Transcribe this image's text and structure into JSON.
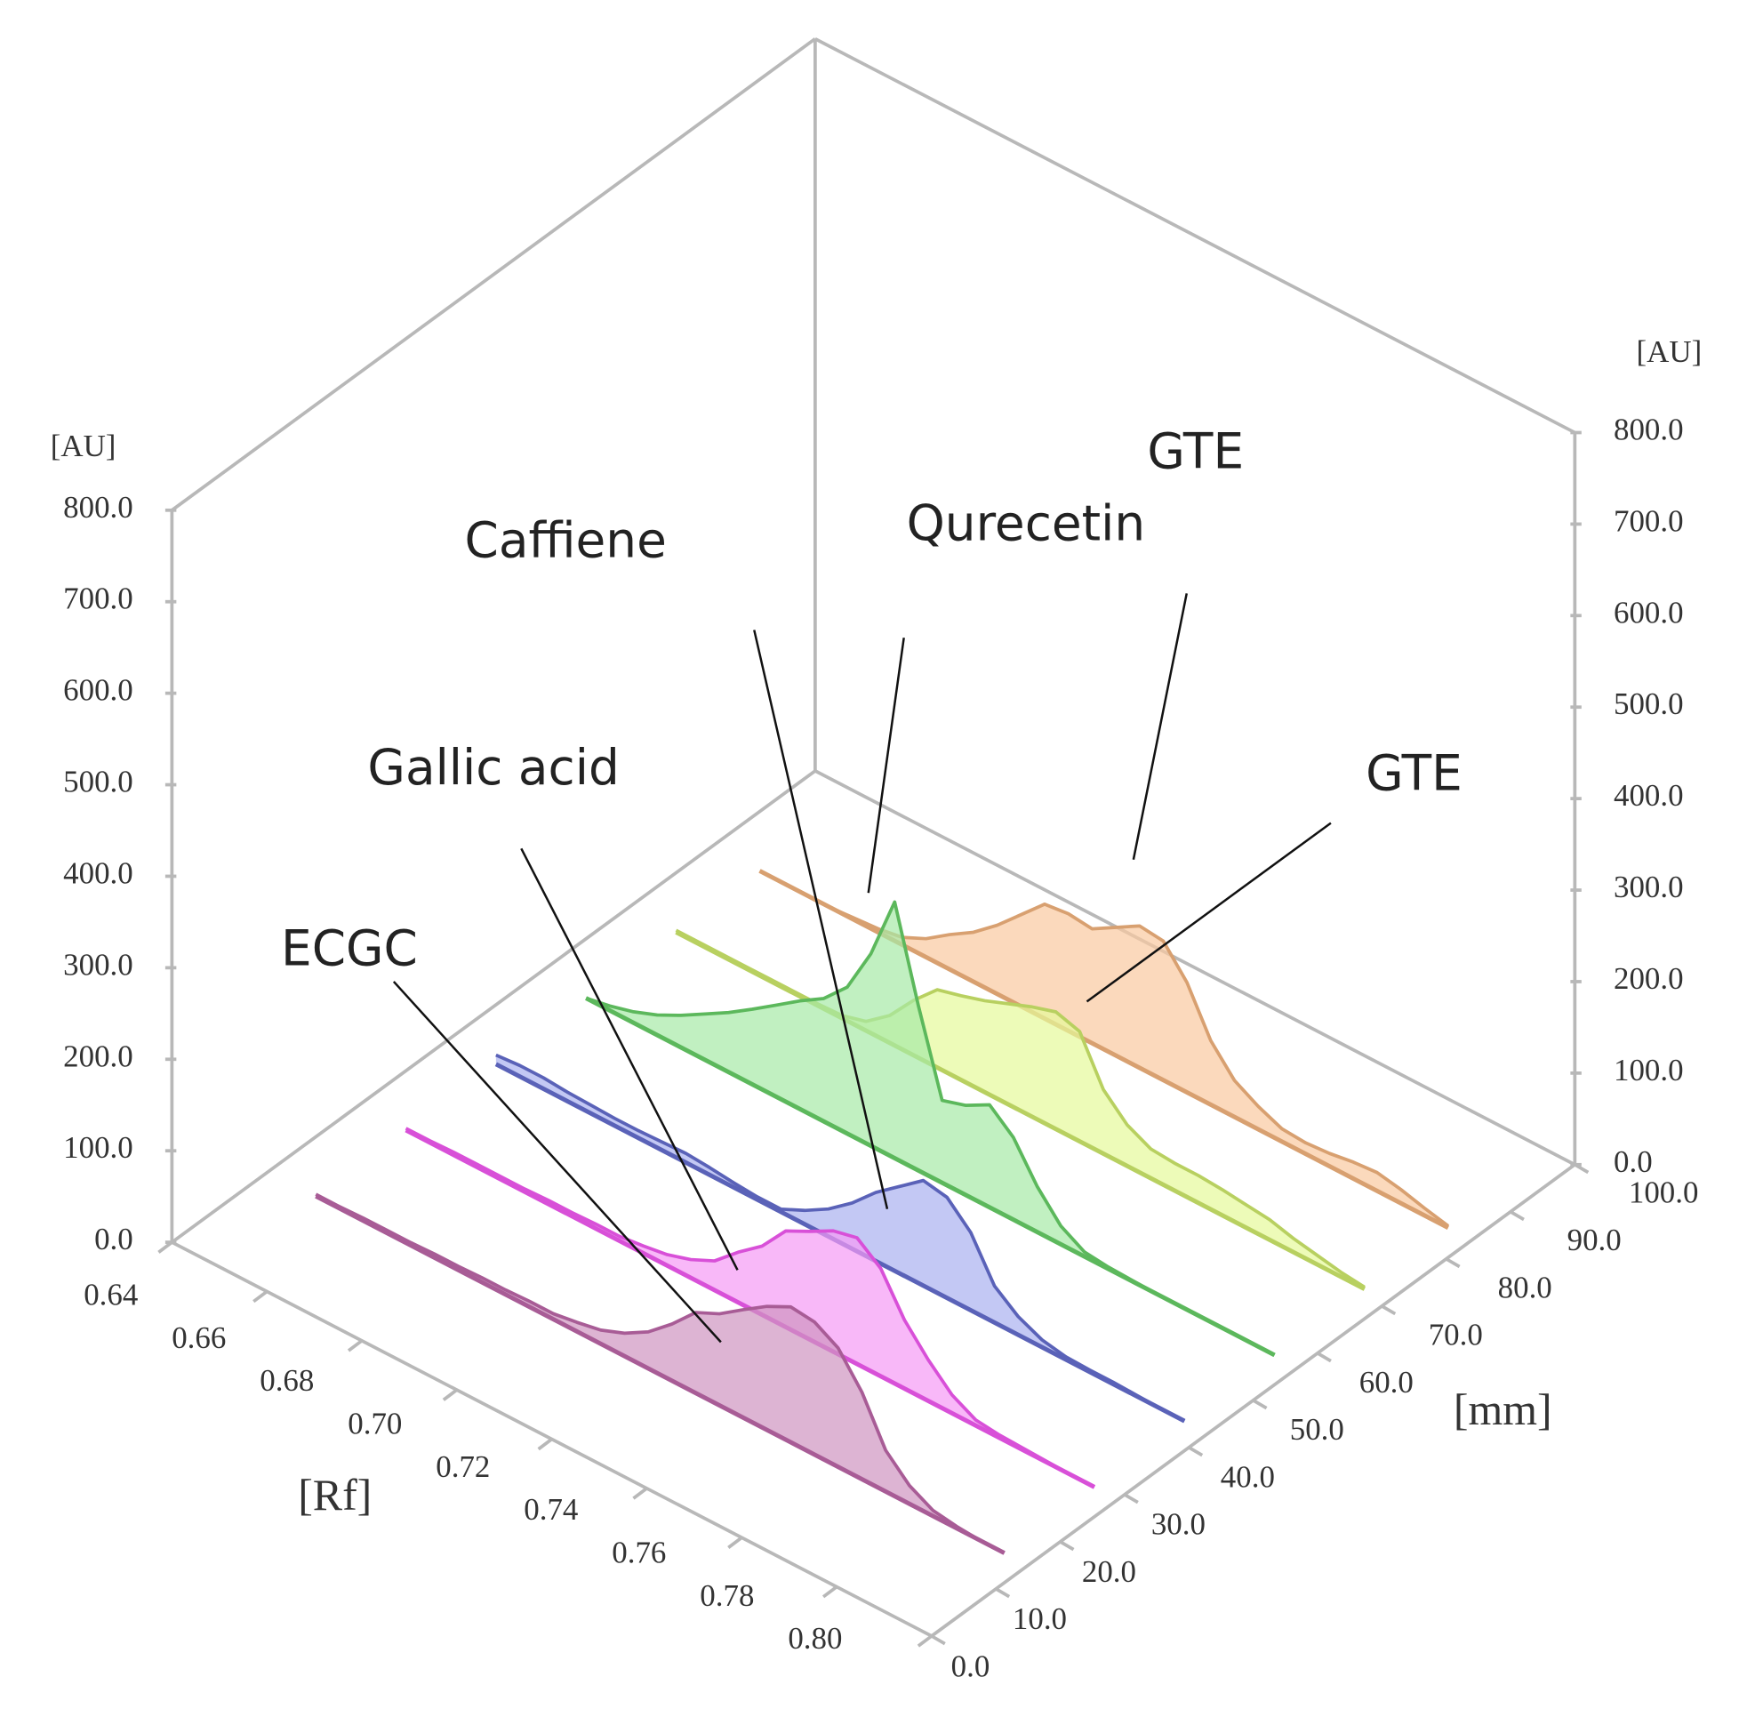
{
  "chart_data": {
    "type": "line3d",
    "xlabel": "[Rf]",
    "zlabel": "[mm]",
    "ylabel": "[AU]",
    "y2label": "[AU]",
    "xlim": [
      0.64,
      0.8
    ],
    "xticks": [
      0.64,
      0.66,
      0.68,
      {
        "value": 0.7,
        "label": "0.70"
      },
      0.72,
      0.74,
      0.76,
      0.78,
      {
        "value": 0.8,
        "label": "0.80"
      }
    ],
    "zlim": [
      0,
      100
    ],
    "zticks": [
      {
        "value": 0,
        "label": "0.0"
      },
      {
        "value": 10,
        "label": "10.0"
      },
      {
        "value": 20,
        "label": "20.0"
      },
      {
        "value": 30,
        "label": "30.0"
      },
      {
        "value": 40,
        "label": "40.0"
      },
      {
        "value": 50,
        "label": "50.0"
      },
      {
        "value": 60,
        "label": "60.0"
      },
      {
        "value": 70,
        "label": "70.0"
      },
      {
        "value": 80,
        "label": "80.0"
      },
      {
        "value": 90,
        "label": "90.0"
      },
      {
        "value": 100,
        "label": "100.0"
      }
    ],
    "ylim": [
      0,
      800
    ],
    "yticks": [
      {
        "value": 0,
        "label": "0.0"
      },
      {
        "value": 100,
        "label": "100.0"
      },
      {
        "value": 200,
        "label": "200.0"
      },
      {
        "value": 300,
        "label": "300.0"
      },
      {
        "value": 400,
        "label": "400.0"
      },
      {
        "value": 500,
        "label": "500.0"
      },
      {
        "value": 600,
        "label": "600.0"
      },
      {
        "value": 700,
        "label": "700.0"
      },
      {
        "value": 800,
        "label": "800.0"
      }
    ],
    "y2lim": [
      0,
      800
    ],
    "y2ticks": [
      {
        "value": 0,
        "label": "0.0"
      },
      {
        "value": 100,
        "label": "100.0"
      },
      {
        "value": 200,
        "label": "200.0"
      },
      {
        "value": 300,
        "label": "300.0"
      },
      {
        "value": 400,
        "label": "400.0"
      },
      {
        "value": 500,
        "label": "500.0"
      },
      {
        "value": 600,
        "label": "600.0"
      },
      {
        "value": 700,
        "label": "700.0"
      },
      {
        "value": 800,
        "label": "800.0"
      }
    ],
    "x": [
      0.65,
      0.655,
      0.66,
      0.665,
      0.67,
      0.675,
      0.68,
      0.685,
      0.69,
      0.695,
      0.7,
      0.705,
      0.71,
      0.715,
      0.72,
      0.725,
      0.73,
      0.735,
      0.74,
      0.745,
      0.75,
      0.755,
      0.76,
      0.765,
      0.77,
      0.775,
      0.78,
      0.785,
      0.79,
      0.795
    ],
    "series": [
      {
        "name": "ECGC",
        "color": "#a85c96",
        "fill": "#cf94c0",
        "mm": 15,
        "values": [
          2,
          2,
          3,
          3,
          3,
          4,
          4,
          5,
          5,
          6,
          6,
          10,
          15,
          25,
          40,
          62,
          88,
          100,
          118,
          135,
          148,
          145,
          130,
          95,
          45,
          20,
          6,
          2,
          0,
          0
        ]
      },
      {
        "name": "Gallic acid",
        "color": "#d850d8",
        "fill": "#f59af5",
        "mm": 29,
        "values": [
          2,
          2,
          3,
          3,
          3,
          3,
          4,
          4,
          5,
          5,
          8,
          12,
          20,
          32,
          55,
          75,
          105,
          118,
          132,
          138,
          118,
          75,
          45,
          20,
          6,
          3,
          2,
          1,
          0,
          0
        ]
      },
      {
        "name": "Caffiene",
        "color": "#5a62b8",
        "fill": "#a9b0f0",
        "mm": 43,
        "values": [
          10,
          12,
          12,
          10,
          9,
          8,
          8,
          9,
          10,
          8,
          5,
          3,
          3,
          15,
          30,
          50,
          75,
          95,
          115,
          110,
          85,
          40,
          20,
          8,
          3,
          2,
          2,
          1,
          0,
          0
        ]
      },
      {
        "name": "Qurecetin",
        "color": "#5cb85c",
        "fill": "#a6eaa6",
        "mm": 57,
        "values": [
          0,
          5,
          12,
          22,
          35,
          50,
          65,
          82,
          100,
          118,
          134,
          160,
          210,
          280,
          180,
          90,
          98,
          112,
          90,
          50,
          20,
          5,
          2,
          1,
          0,
          0,
          0,
          0,
          0,
          0
        ]
      },
      {
        "name": "GTE",
        "color": "#b8d060",
        "fill": "#e6fa9a",
        "mm": 71,
        "values": [
          2,
          2,
          2,
          2,
          2,
          2,
          2,
          3,
          10,
          30,
          60,
          85,
          92,
          100,
          110,
          120,
          128,
          120,
          70,
          45,
          32,
          30,
          30,
          28,
          25,
          22,
          15,
          10,
          5,
          2
        ]
      },
      {
        "name": "GTE",
        "color": "#d8a070",
        "fill": "#f9c9a0",
        "mm": 84,
        "values": [
          0,
          0,
          0,
          0,
          2,
          4,
          8,
          20,
          38,
          54,
          75,
          100,
          125,
          128,
          125,
          140,
          155,
          152,
          120,
          70,
          40,
          25,
          14,
          12,
          14,
          18,
          20,
          15,
          8,
          2
        ]
      }
    ]
  }
}
